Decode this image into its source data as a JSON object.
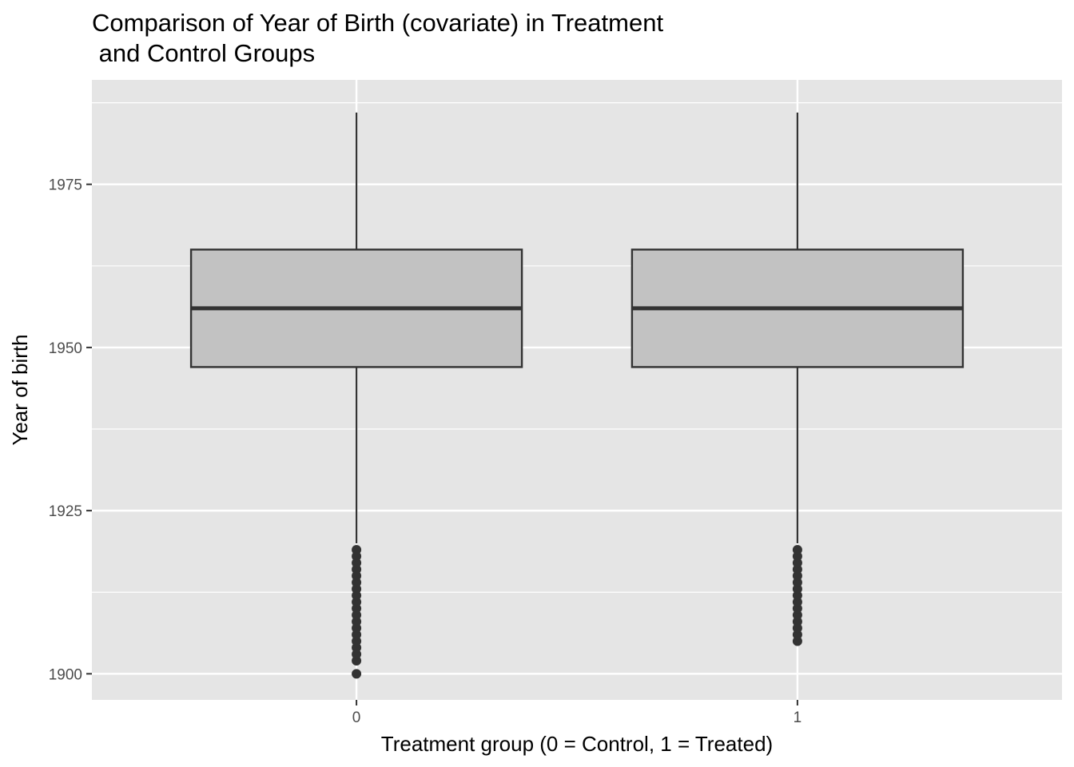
{
  "chart_data": {
    "type": "boxplot",
    "title_lines": [
      "Comparison of Year of Birth (covariate) in Treatment",
      " and Control Groups"
    ],
    "xlabel": "Treatment group (0 = Control, 1 = Treated)",
    "ylabel": "Year of birth",
    "ylim": [
      1896,
      1991
    ],
    "y_ticks": [
      1900,
      1925,
      1950,
      1975
    ],
    "y_minor_ticks": [
      1912.5,
      1937.5,
      1962.5,
      1987.5
    ],
    "categories": [
      "0",
      "1"
    ],
    "grid": true,
    "colors": {
      "panel": "#e5e5e5",
      "grid": "#ffffff",
      "box_fill": "#c2c2c2",
      "stroke": "#333333",
      "tick_text": "#4d4d4d"
    },
    "boxes": [
      {
        "category": "0",
        "whisker_low": 1920,
        "q1": 1947,
        "median": 1956,
        "q3": 1965,
        "whisker_high": 1986,
        "outliers": [
          1900,
          1902,
          1903,
          1904,
          1905,
          1906,
          1907,
          1908,
          1909,
          1910,
          1911,
          1912,
          1913,
          1914,
          1915,
          1916,
          1917,
          1918,
          1919
        ]
      },
      {
        "category": "1",
        "whisker_low": 1920,
        "q1": 1947,
        "median": 1956,
        "q3": 1965,
        "whisker_high": 1986,
        "outliers": [
          1905,
          1906,
          1907,
          1908,
          1909,
          1910,
          1911,
          1912,
          1913,
          1914,
          1915,
          1916,
          1917,
          1918,
          1919
        ]
      }
    ]
  }
}
